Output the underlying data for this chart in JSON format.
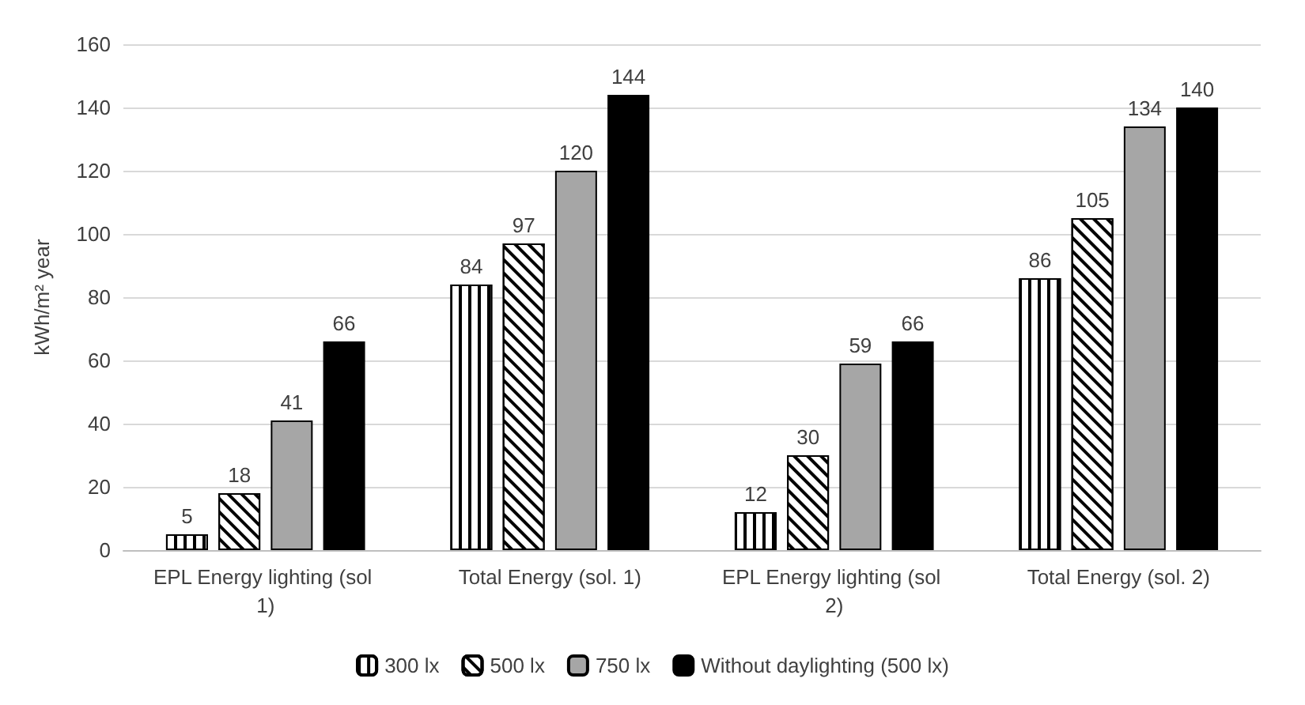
{
  "chart_data": {
    "type": "bar",
    "ylabel": "kWh/m² year",
    "categories": [
      "EPL Energy lighting (sol 1)",
      "Total Energy (sol. 1)",
      "EPL Energy lighting (sol 2)",
      "Total Energy (sol. 2)"
    ],
    "series": [
      {
        "name": "300 lx",
        "color": "#ffffff",
        "values": [
          5,
          84,
          12,
          86
        ]
      },
      {
        "name": "500 lx",
        "color": "#ffffff",
        "values": [
          18,
          97,
          30,
          105
        ]
      },
      {
        "name": "750 lx",
        "color": "#a6a6a6",
        "values": [
          41,
          120,
          59,
          134
        ]
      },
      {
        "name": "Without daylighting (500 lx)",
        "color": "#000000",
        "values": [
          66,
          144,
          66,
          140
        ]
      }
    ],
    "ylim": [
      0,
      160
    ],
    "yticks": [
      0,
      20,
      40,
      60,
      80,
      100,
      120,
      140,
      160
    ],
    "grid": "y",
    "legend": "bottom",
    "data_labels": true
  }
}
